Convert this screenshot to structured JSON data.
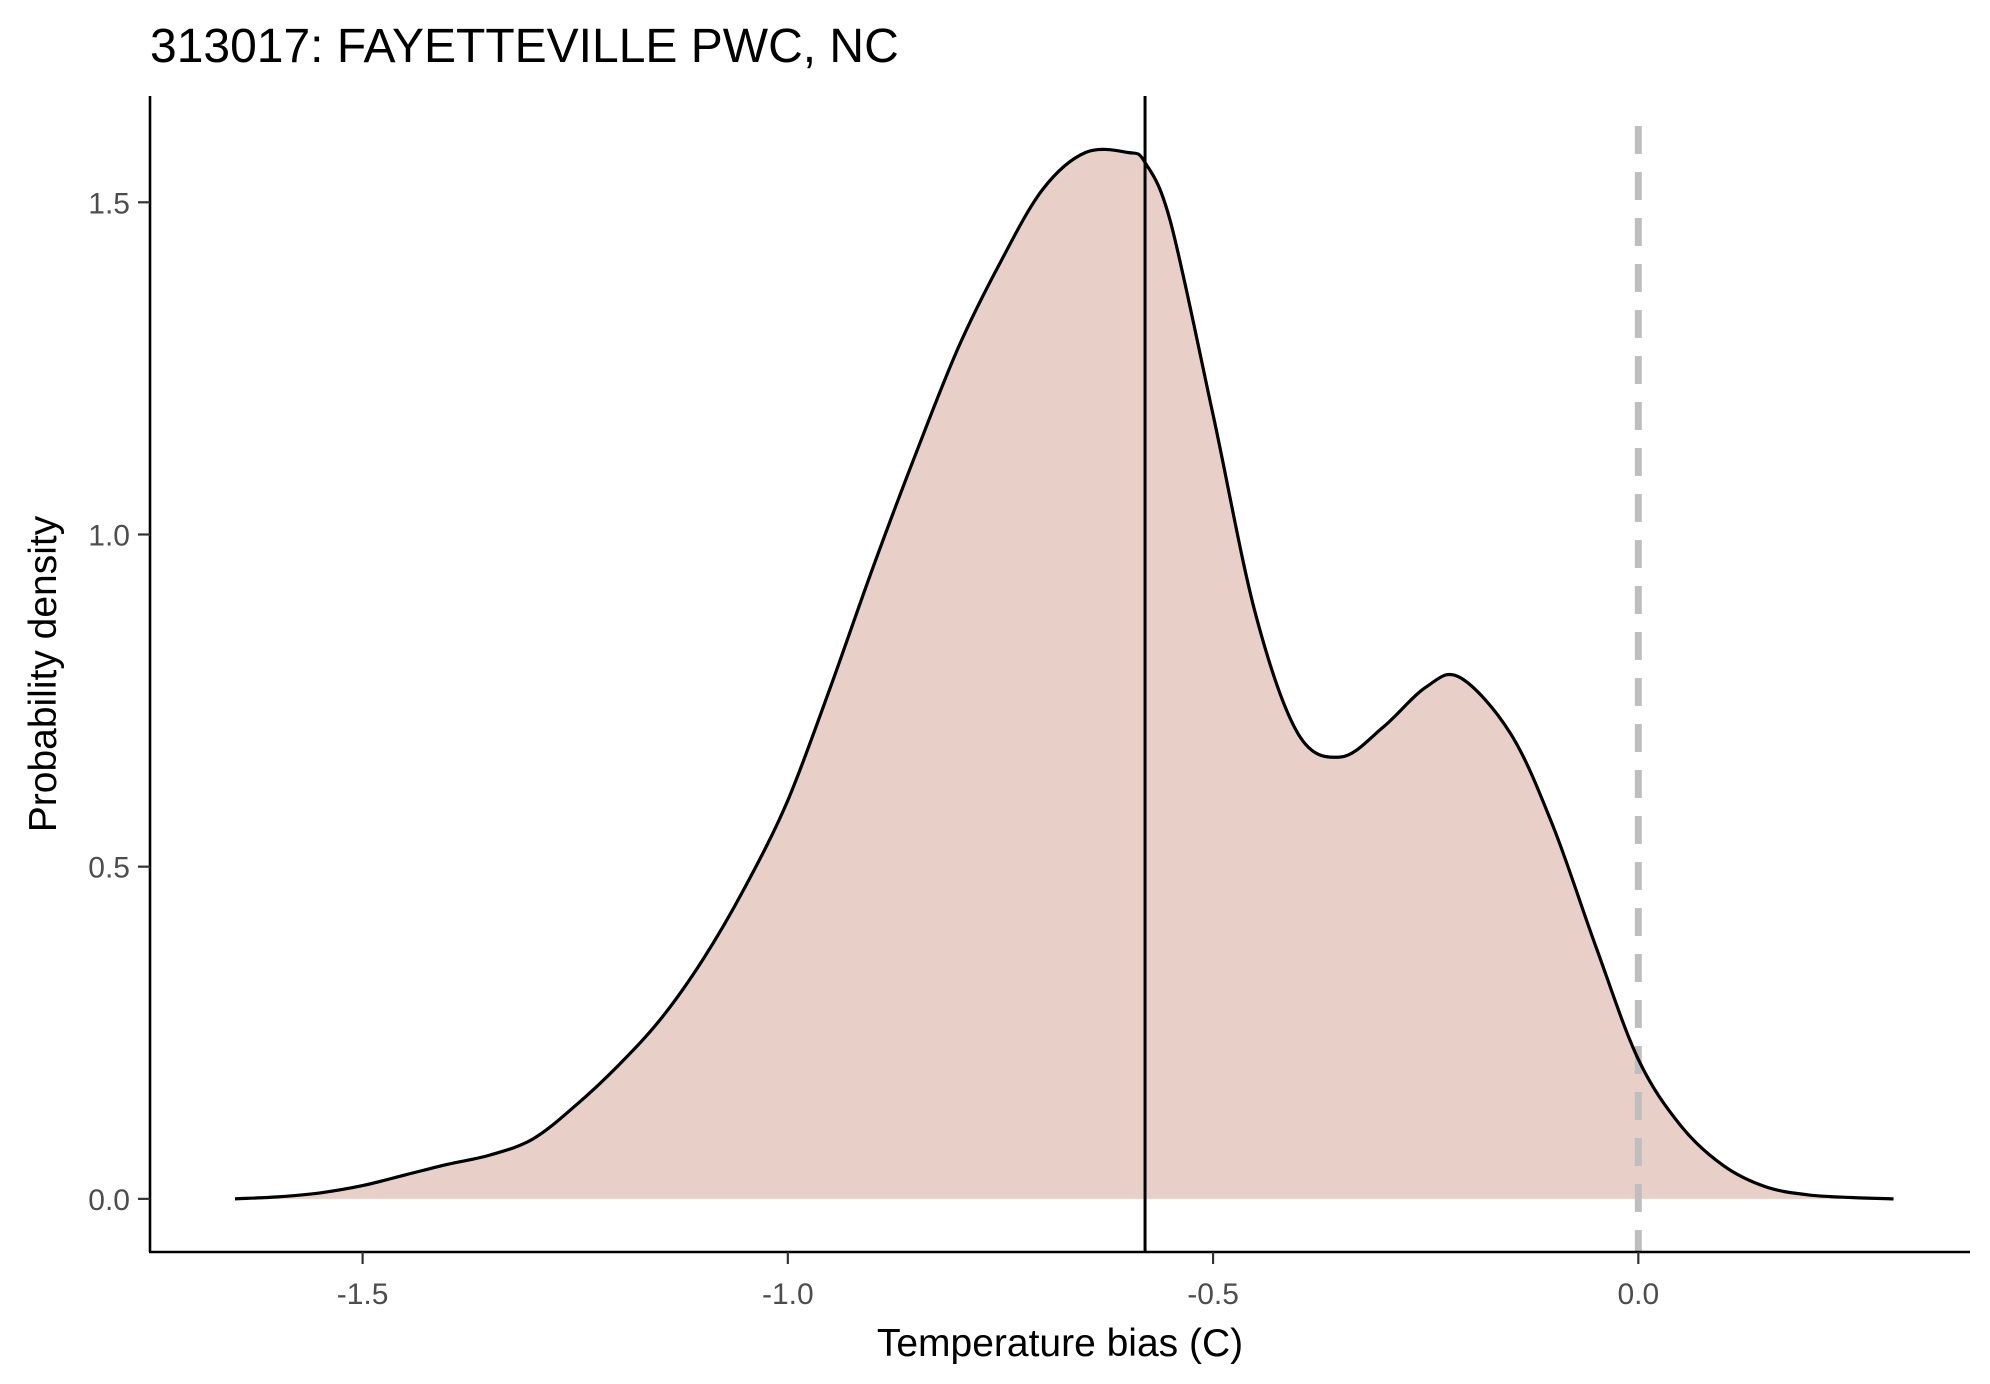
{
  "chart_data": {
    "type": "area",
    "title": "313017: FAYETTEVILLE PWC, NC",
    "xlabel": "Temperature bias (C)",
    "ylabel": "Probability density",
    "xlim": [
      -1.75,
      0.39
    ],
    "ylim": [
      -0.08,
      1.66
    ],
    "x_ticks": [
      -1.5,
      -1.0,
      -0.5,
      0.0
    ],
    "x_tick_labels": [
      "-1.5",
      "-1.0",
      "-0.5",
      "0.0"
    ],
    "y_ticks": [
      0.0,
      0.5,
      1.0,
      1.5
    ],
    "y_tick_labels": [
      "0.0",
      "0.5",
      "1.0",
      "1.5"
    ],
    "grid": false,
    "fill_color": "#e8d0c9",
    "line_color": "#000000",
    "mean_line_x": -0.58,
    "reference_line_x": 0.0,
    "reference_line_color": "#bebebe",
    "series": [
      {
        "name": "density",
        "x": [
          -1.65,
          -1.6,
          -1.55,
          -1.5,
          -1.45,
          -1.4,
          -1.35,
          -1.3,
          -1.25,
          -1.2,
          -1.15,
          -1.1,
          -1.05,
          -1.0,
          -0.95,
          -0.9,
          -0.85,
          -0.8,
          -0.75,
          -0.7,
          -0.65,
          -0.6,
          -0.58,
          -0.55,
          -0.5,
          -0.45,
          -0.4,
          -0.35,
          -0.3,
          -0.25,
          -0.21,
          -0.15,
          -0.1,
          -0.05,
          0.0,
          0.05,
          0.1,
          0.15,
          0.2,
          0.25,
          0.3
        ],
        "y": [
          0.0,
          0.003,
          0.009,
          0.02,
          0.036,
          0.052,
          0.066,
          0.09,
          0.14,
          0.2,
          0.27,
          0.36,
          0.47,
          0.6,
          0.77,
          0.95,
          1.12,
          1.28,
          1.41,
          1.52,
          1.575,
          1.575,
          1.56,
          1.47,
          1.18,
          0.88,
          0.7,
          0.665,
          0.71,
          0.77,
          0.785,
          0.7,
          0.56,
          0.38,
          0.21,
          0.11,
          0.05,
          0.018,
          0.006,
          0.002,
          0.0
        ]
      }
    ]
  }
}
